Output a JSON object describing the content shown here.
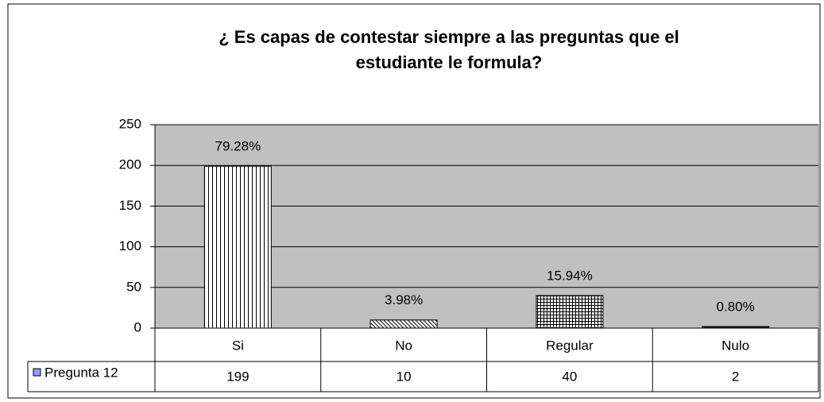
{
  "chart_data": {
    "type": "bar",
    "title": [
      "¿ Es capas de contestar siempre a las preguntas que el",
      "estudiante le formula?"
    ],
    "categories": [
      "Si",
      "No",
      "Regular",
      "Nulo"
    ],
    "series": [
      {
        "name": "Pregunta 12",
        "color": "#9999ff",
        "values": [
          199,
          10,
          40,
          2
        ]
      }
    ],
    "data_labels": [
      "79.28%",
      "3.98%",
      "15.94%",
      "0.80%"
    ],
    "ylim": [
      0,
      250
    ],
    "yticks": [
      0,
      50,
      100,
      150,
      200,
      250
    ],
    "grid": true
  }
}
